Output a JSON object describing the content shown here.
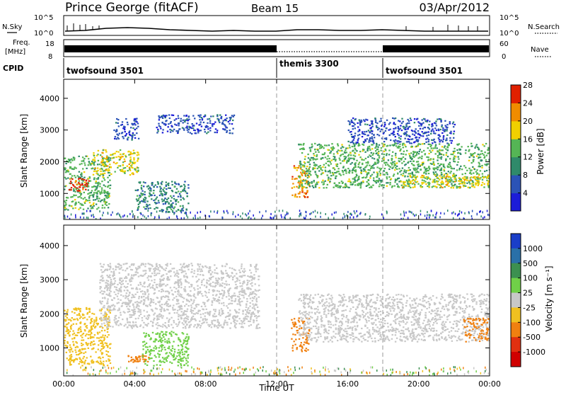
{
  "header": {
    "station": "Prince George (fitACF)",
    "beam": "Beam 15",
    "date": "03/Apr/2012"
  },
  "strip_panels": {
    "nsky_label": "N.Sky",
    "nsearch_label": "N.Search",
    "count_ticks": [
      "10^5",
      "10^0"
    ],
    "freq_label_1": "Freq.",
    "freq_label_2": "[MHz]",
    "freq_ticks": [
      "18",
      "8"
    ],
    "nave_label": "Nave",
    "nave_ticks": [
      "60",
      "0"
    ],
    "cpid_label": "CPID",
    "cpid_segments": [
      {
        "name": "twofsound 3501",
        "start_hour": 0,
        "end_hour": 12
      },
      {
        "name": "themis 3300",
        "start_hour": 12,
        "end_hour": 18
      },
      {
        "name": "twofsound 3501",
        "start_hour": 18,
        "end_hour": 24
      }
    ]
  },
  "chart_data": [
    {
      "type": "heatmap",
      "name": "Power",
      "xlabel": "Time UT",
      "ylabel": "Slant Range [km]",
      "xlim": [
        0,
        24
      ],
      "ylim": [
        180,
        4600
      ],
      "x_ticks": [
        "00:00",
        "04:00",
        "08:00",
        "12:00",
        "16:00",
        "20:00",
        "00:00"
      ],
      "y_ticks": [
        1000,
        2000,
        3000,
        4000
      ],
      "colorbar": {
        "label": "Power [dB]",
        "ticks": [
          4,
          8,
          12,
          16,
          20,
          24,
          28
        ],
        "colors": [
          "#1c1cd8",
          "#2b53b6",
          "#2f8a6a",
          "#55b555",
          "#f0d000",
          "#f08c00",
          "#e02000"
        ]
      },
      "echo_regions": [
        {
          "start_hour": 0.0,
          "end_hour": 2.6,
          "range_low_km": 500,
          "range_high_km": 2200,
          "power_db": 16
        },
        {
          "start_hour": 0.2,
          "end_hour": 1.4,
          "range_low_km": 1100,
          "range_high_km": 1500,
          "power_db": 26
        },
        {
          "start_hour": 1.6,
          "end_hour": 4.2,
          "range_low_km": 1600,
          "range_high_km": 2400,
          "power_db": 18
        },
        {
          "start_hour": 2.8,
          "end_hour": 4.2,
          "range_low_km": 2700,
          "range_high_km": 3400,
          "power_db": 8
        },
        {
          "start_hour": 4.0,
          "end_hour": 7.0,
          "range_low_km": 400,
          "range_high_km": 1400,
          "power_db": 12
        },
        {
          "start_hour": 5.2,
          "end_hour": 9.6,
          "range_low_km": 2900,
          "range_high_km": 3500,
          "power_db": 6
        },
        {
          "start_hour": 12.8,
          "end_hour": 13.8,
          "range_low_km": 900,
          "range_high_km": 1900,
          "power_db": 24
        },
        {
          "start_hour": 13.2,
          "end_hour": 24.0,
          "range_low_km": 1200,
          "range_high_km": 2600,
          "power_db": 14
        },
        {
          "start_hour": 19.0,
          "end_hour": 24.0,
          "range_low_km": 1200,
          "range_high_km": 1600,
          "power_db": 20
        },
        {
          "start_hour": 16.0,
          "end_hour": 22.0,
          "range_low_km": 2600,
          "range_high_km": 3400,
          "power_db": 8
        }
      ]
    },
    {
      "type": "heatmap",
      "name": "Velocity",
      "xlabel": "Time UT",
      "ylabel": "Slant Range [km]",
      "xlim": [
        0,
        24
      ],
      "ylim": [
        180,
        4600
      ],
      "x_ticks": [
        "00:00",
        "04:00",
        "08:00",
        "12:00",
        "16:00",
        "20:00",
        "00:00"
      ],
      "y_ticks": [
        1000,
        2000,
        3000,
        4000
      ],
      "colorbar": {
        "label": "Velocity [m s⁻¹]",
        "ticks": [
          "1000",
          "500",
          "100",
          "25",
          "-25",
          "-100",
          "-500",
          "-1000"
        ],
        "colors": [
          "#1a3ec8",
          "#2a70a8",
          "#3c9050",
          "#70d048",
          "#c8c8c8",
          "#f0c020",
          "#f08010",
          "#e03010",
          "#d00000"
        ]
      },
      "echo_regions": [
        {
          "start_hour": 0.0,
          "end_hour": 2.6,
          "range_low_km": 500,
          "range_high_km": 2200,
          "velocity_ms": -60
        },
        {
          "start_hour": 2.0,
          "end_hour": 11.0,
          "range_low_km": 1600,
          "range_high_km": 3500,
          "velocity_ms": 0
        },
        {
          "start_hour": 3.6,
          "end_hour": 4.8,
          "range_low_km": 600,
          "range_high_km": 800,
          "velocity_ms": -150
        },
        {
          "start_hour": 4.4,
          "end_hour": 7.0,
          "range_low_km": 500,
          "range_high_km": 1500,
          "velocity_ms": 80
        },
        {
          "start_hour": 12.8,
          "end_hour": 13.8,
          "range_low_km": 900,
          "range_high_km": 1900,
          "velocity_ms": -200
        },
        {
          "start_hour": 13.2,
          "end_hour": 24.0,
          "range_low_km": 1200,
          "range_high_km": 2600,
          "velocity_ms": 0
        },
        {
          "start_hour": 22.5,
          "end_hour": 24.0,
          "range_low_km": 1200,
          "range_high_km": 1900,
          "velocity_ms": -150
        }
      ]
    }
  ]
}
